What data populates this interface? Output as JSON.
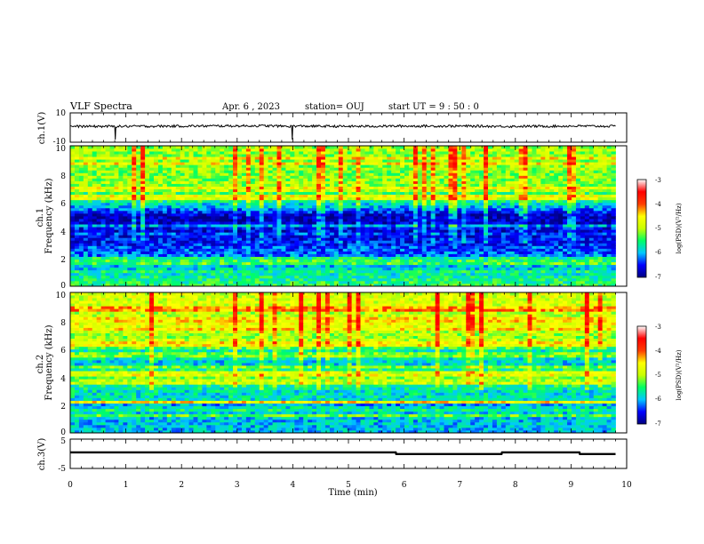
{
  "header": {
    "title": "VLF  Spectra",
    "date": "Apr. 6  , 2023",
    "station": "station= OUJ",
    "start_ut": "start  UT  =   9  : 50 : 0"
  },
  "colors": {
    "colormap": [
      "#000080",
      "#0000ff",
      "#00c8ff",
      "#00ff64",
      "#c8ff00",
      "#ffff00",
      "#ff3c00",
      "#ff0000",
      "#ffffff"
    ],
    "trace": "#000000",
    "background": "#ffffff"
  },
  "chart_data": [
    {
      "type": "line",
      "ylabel": "ch.1(V)",
      "ylim": [
        -10,
        10
      ],
      "yticks": [
        "10",
        "-10"
      ],
      "x": [
        0,
        0.8,
        0.81,
        0.82,
        2.0,
        3.5,
        3.98,
        3.99,
        4.0,
        5.0,
        6.0,
        7.0,
        8.0,
        9.0,
        9.8
      ],
      "y": [
        0.8,
        0.8,
        -7.5,
        0.8,
        1.0,
        1.2,
        0.8,
        -8.0,
        1.0,
        0.8,
        1.0,
        1.0,
        0.8,
        1.0,
        0.9
      ]
    },
    {
      "type": "heatmap",
      "ylabel": "ch.1\nFrequency  (kHz)",
      "ylim": [
        0,
        10
      ],
      "yticks": [
        "0",
        "2",
        "4",
        "6",
        "8",
        "10"
      ],
      "colorbar": {
        "label": "log(PSD)(V²/Hz)",
        "range": [
          -7,
          -3
        ],
        "ticks": [
          "-3",
          "-4",
          "-5",
          "-6",
          "-7"
        ]
      },
      "bands_kHz_logpsd": [
        [
          0,
          -5.2
        ],
        [
          1,
          -5.6
        ],
        [
          2,
          -6.0
        ],
        [
          3,
          -6.4
        ],
        [
          4,
          -6.6
        ],
        [
          5,
          -6.8
        ],
        [
          6,
          -5.4
        ],
        [
          7,
          -5.0
        ],
        [
          8,
          -4.8
        ],
        [
          9,
          -4.9
        ],
        [
          10,
          -4.9
        ]
      ]
    },
    {
      "type": "heatmap",
      "ylabel": "ch.2\nFrequency  (kHz)",
      "ylim": [
        0,
        10
      ],
      "yticks": [
        "0",
        "2",
        "4",
        "6",
        "8",
        "10"
      ],
      "colorbar": {
        "label": "log(PSD)(V²/Hz)",
        "range": [
          -7,
          -3
        ],
        "ticks": [
          "-3",
          "-4",
          "-5",
          "-6",
          "-7"
        ]
      },
      "bands_kHz_logpsd": [
        [
          0,
          -5.8
        ],
        [
          1,
          -5.8
        ],
        [
          2,
          -5.6
        ],
        [
          3,
          -5.6
        ],
        [
          4,
          -5.0
        ],
        [
          5,
          -5.8
        ],
        [
          6,
          -5.1
        ],
        [
          7,
          -4.8
        ],
        [
          8,
          -4.2
        ],
        [
          9,
          -4.5
        ],
        [
          10,
          -4.5
        ]
      ]
    },
    {
      "type": "line",
      "ylabel": "ch.3(V)",
      "ylim": [
        -5,
        5
      ],
      "yticks": [
        "5",
        "-5"
      ],
      "x": [
        0,
        5.85,
        5.86,
        7.75,
        7.76,
        9.15,
        9.16,
        9.8
      ],
      "y": [
        0.5,
        0.5,
        -0.1,
        -0.1,
        0.5,
        0.5,
        -0.1,
        -0.1
      ]
    }
  ],
  "xaxis": {
    "label": "Time  (min)",
    "range": [
      0,
      10
    ],
    "ticks": [
      "0",
      "1",
      "2",
      "3",
      "4",
      "5",
      "6",
      "7",
      "8",
      "9",
      "10"
    ]
  }
}
